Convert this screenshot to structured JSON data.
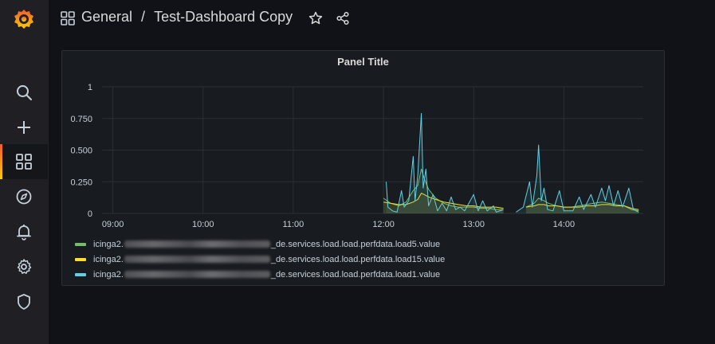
{
  "sidebar": {
    "items": [
      {
        "name": "search",
        "icon": "search-icon"
      },
      {
        "name": "create",
        "icon": "plus-icon"
      },
      {
        "name": "dashboards",
        "icon": "dashboards-grid-icon",
        "active": true
      },
      {
        "name": "explore",
        "icon": "compass-icon"
      },
      {
        "name": "alerting",
        "icon": "bell-icon"
      },
      {
        "name": "configuration",
        "icon": "gear-icon"
      },
      {
        "name": "server-admin",
        "icon": "shield-icon"
      }
    ]
  },
  "header": {
    "folder": "General",
    "separator": "/",
    "dashboard_title": "Test-Dashboard Copy",
    "icons": [
      "dashboards-grid-icon",
      "star-icon",
      "share-icon"
    ]
  },
  "panel": {
    "title": "Panel Title"
  },
  "colors": {
    "load5": "#73bf69",
    "load15": "#fade2a",
    "load1": "#5fd0e6",
    "accent_start": "#f15c2b",
    "accent_end": "#fbca0a"
  },
  "chart_data": {
    "type": "line",
    "title": "Panel Title",
    "x_tick_labels": [
      "09:00",
      "10:00",
      "11:00",
      "12:00",
      "13:00",
      "14:00"
    ],
    "y_tick_labels": [
      "0",
      "0.250",
      "0.500",
      "0.750",
      "1"
    ],
    "ylim": [
      0,
      1
    ],
    "xlim_hours": [
      8.88,
      14.88
    ],
    "grid": true,
    "legend_position": "bottom",
    "series": [
      {
        "name": "icinga2.",
        "name_suffix": "_de.services.load.load.perfdata.load5.value",
        "color": "#73bf69",
        "points": [
          [
            12.0,
            0.12
          ],
          [
            12.08,
            0.08
          ],
          [
            12.17,
            0.06
          ],
          [
            12.25,
            0.09
          ],
          [
            12.33,
            0.18
          ],
          [
            12.38,
            0.22
          ],
          [
            12.42,
            0.35
          ],
          [
            12.45,
            0.28
          ],
          [
            12.5,
            0.19
          ],
          [
            12.58,
            0.12
          ],
          [
            12.67,
            0.08
          ],
          [
            12.75,
            0.06
          ],
          [
            12.83,
            0.05
          ],
          [
            12.92,
            0.05
          ],
          [
            13.0,
            0.05
          ],
          [
            13.08,
            0.04
          ],
          [
            13.17,
            0.04
          ],
          [
            13.25,
            0.03
          ],
          [
            13.33,
            0.03
          ],
          [
            13.47,
            0.04
          ],
          [
            13.58,
            0.05
          ],
          [
            13.67,
            0.08
          ],
          [
            13.72,
            0.12
          ],
          [
            13.78,
            0.1
          ],
          [
            13.83,
            0.08
          ],
          [
            13.92,
            0.06
          ],
          [
            14.0,
            0.05
          ],
          [
            14.08,
            0.05
          ],
          [
            14.17,
            0.06
          ],
          [
            14.25,
            0.07
          ],
          [
            14.33,
            0.08
          ],
          [
            14.42,
            0.09
          ],
          [
            14.5,
            0.08
          ],
          [
            14.58,
            0.07
          ],
          [
            14.67,
            0.06
          ],
          [
            14.75,
            0.03
          ],
          [
            14.83,
            0.02
          ]
        ]
      },
      {
        "name": "icinga2.",
        "name_suffix": "_de.services.load.load.perfdata.load15.value",
        "color": "#fade2a",
        "points": [
          [
            12.0,
            0.09
          ],
          [
            12.08,
            0.08
          ],
          [
            12.17,
            0.07
          ],
          [
            12.25,
            0.07
          ],
          [
            12.33,
            0.09
          ],
          [
            12.38,
            0.11
          ],
          [
            12.42,
            0.16
          ],
          [
            12.45,
            0.15
          ],
          [
            12.5,
            0.13
          ],
          [
            12.58,
            0.11
          ],
          [
            12.67,
            0.09
          ],
          [
            12.75,
            0.08
          ],
          [
            12.83,
            0.07
          ],
          [
            12.92,
            0.06
          ],
          [
            13.0,
            0.06
          ],
          [
            13.08,
            0.05
          ],
          [
            13.17,
            0.05
          ],
          [
            13.25,
            0.05
          ],
          [
            13.33,
            0.04
          ],
          [
            13.47,
            0.04
          ],
          [
            13.58,
            0.05
          ],
          [
            13.67,
            0.06
          ],
          [
            13.72,
            0.07
          ],
          [
            13.78,
            0.07
          ],
          [
            13.83,
            0.06
          ],
          [
            13.92,
            0.06
          ],
          [
            14.0,
            0.05
          ],
          [
            14.08,
            0.05
          ],
          [
            14.17,
            0.05
          ],
          [
            14.25,
            0.06
          ],
          [
            14.33,
            0.06
          ],
          [
            14.42,
            0.07
          ],
          [
            14.5,
            0.07
          ],
          [
            14.58,
            0.06
          ],
          [
            14.67,
            0.06
          ],
          [
            14.75,
            0.04
          ],
          [
            14.83,
            0.03
          ]
        ]
      },
      {
        "name": "icinga2.",
        "name_suffix": "_de.services.load.load.perfdata.load1.value",
        "color": "#5fd0e6",
        "points": [
          [
            12.03,
            0.25
          ],
          [
            12.05,
            0.05
          ],
          [
            12.1,
            0.02
          ],
          [
            12.15,
            0.01
          ],
          [
            12.2,
            0.18
          ],
          [
            12.23,
            0.05
          ],
          [
            12.28,
            0.1
          ],
          [
            12.33,
            0.45
          ],
          [
            12.35,
            0.1
          ],
          [
            12.38,
            0.3
          ],
          [
            12.42,
            0.79
          ],
          [
            12.44,
            0.2
          ],
          [
            12.47,
            0.35
          ],
          [
            12.5,
            0.06
          ],
          [
            12.55,
            0.15
          ],
          [
            12.6,
            0.02
          ],
          [
            12.65,
            0.08
          ],
          [
            12.7,
            0.02
          ],
          [
            12.75,
            0.13
          ],
          [
            12.8,
            0.03
          ],
          [
            12.85,
            0.05
          ],
          [
            12.9,
            0.02
          ],
          [
            13.0,
            0.15
          ],
          [
            13.05,
            0.02
          ],
          [
            13.1,
            0.1
          ],
          [
            13.15,
            0.02
          ],
          [
            13.22,
            0.06
          ],
          [
            13.25,
            0.01
          ],
          [
            13.33,
            0.03
          ],
          [
            13.47,
            0.01
          ],
          [
            13.55,
            0.05
          ],
          [
            13.62,
            0.25
          ],
          [
            13.65,
            0.05
          ],
          [
            13.7,
            0.3
          ],
          [
            13.72,
            0.54
          ],
          [
            13.75,
            0.1
          ],
          [
            13.78,
            0.2
          ],
          [
            13.82,
            0.03
          ],
          [
            13.88,
            0.02
          ],
          [
            13.95,
            0.18
          ],
          [
            14.0,
            0.02
          ],
          [
            14.1,
            0.02
          ],
          [
            14.17,
            0.13
          ],
          [
            14.22,
            0.03
          ],
          [
            14.3,
            0.15
          ],
          [
            14.35,
            0.05
          ],
          [
            14.42,
            0.2
          ],
          [
            14.46,
            0.1
          ],
          [
            14.5,
            0.22
          ],
          [
            14.55,
            0.06
          ],
          [
            14.6,
            0.18
          ],
          [
            14.65,
            0.05
          ],
          [
            14.72,
            0.2
          ],
          [
            14.77,
            0.03
          ],
          [
            14.83,
            0.01
          ]
        ]
      }
    ]
  }
}
